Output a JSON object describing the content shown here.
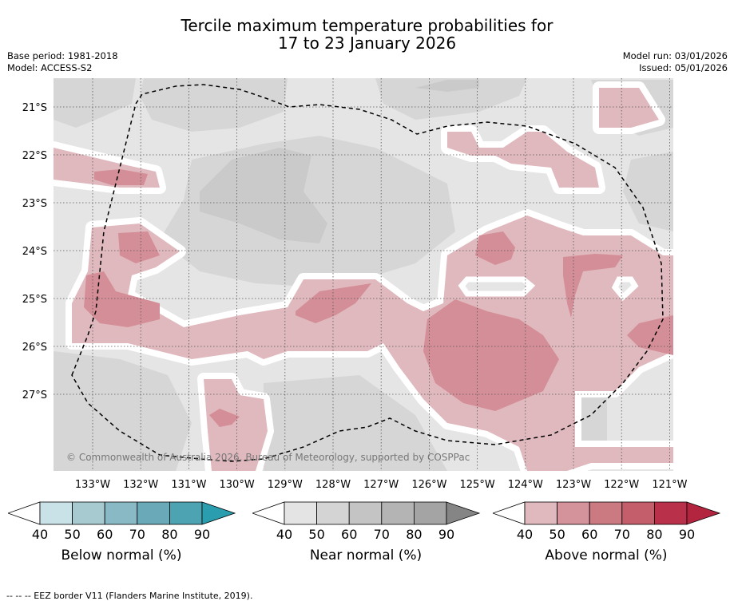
{
  "title": {
    "line1": "Tercile maximum temperature probabilities for",
    "line2": "17 to 23 January 2026"
  },
  "meta": {
    "base_period": "Base period: 1981-2018",
    "model": "Model: ACCESS-S2",
    "model_run": "Model run: 03/01/2026",
    "issued": "Issued: 05/01/2026"
  },
  "map": {
    "lat_labels": [
      "21°S",
      "22°S",
      "23°S",
      "24°S",
      "25°S",
      "26°S",
      "27°S"
    ],
    "lon_labels": [
      "133°W",
      "132°W",
      "131°W",
      "130°W",
      "129°W",
      "128°W",
      "127°W",
      "126°W",
      "125°W",
      "124°W",
      "123°W",
      "122°W",
      "121°W"
    ],
    "copyright": "© Commonwealth of Australia 2026, Bureau of Meteorology, supported by COSPPac",
    "colors": {
      "near40": "#e5e5e5",
      "near50": "#d6d6d6",
      "near60": "#cacaca",
      "above40": "#e0b9be",
      "above50": "#d48e97",
      "white": "#ffffff"
    }
  },
  "colorbars": [
    {
      "label": "Below normal (%)",
      "ticks": [
        "40",
        "50",
        "60",
        "70",
        "80",
        "90"
      ],
      "colors": [
        "#c9e2e8",
        "#a6cad0",
        "#88b9c4",
        "#6aaab8",
        "#4da3b1",
        "#2a9eae"
      ]
    },
    {
      "label": "Near normal (%)",
      "ticks": [
        "40",
        "50",
        "60",
        "70",
        "80",
        "90"
      ],
      "colors": [
        "#e4e4e4",
        "#d4d4d4",
        "#c4c4c4",
        "#b4b4b4",
        "#a4a4a4",
        "#858585"
      ]
    },
    {
      "label": "Above normal (%)",
      "ticks": [
        "40",
        "50",
        "60",
        "70",
        "80",
        "90"
      ],
      "colors": [
        "#e0b9be",
        "#d4929a",
        "#cc7a82",
        "#c45e6a",
        "#b9304a",
        "#b3243f"
      ]
    }
  ],
  "footer": "--  --  -- EEZ border V11 (Flanders Marine Institute, 2019)."
}
